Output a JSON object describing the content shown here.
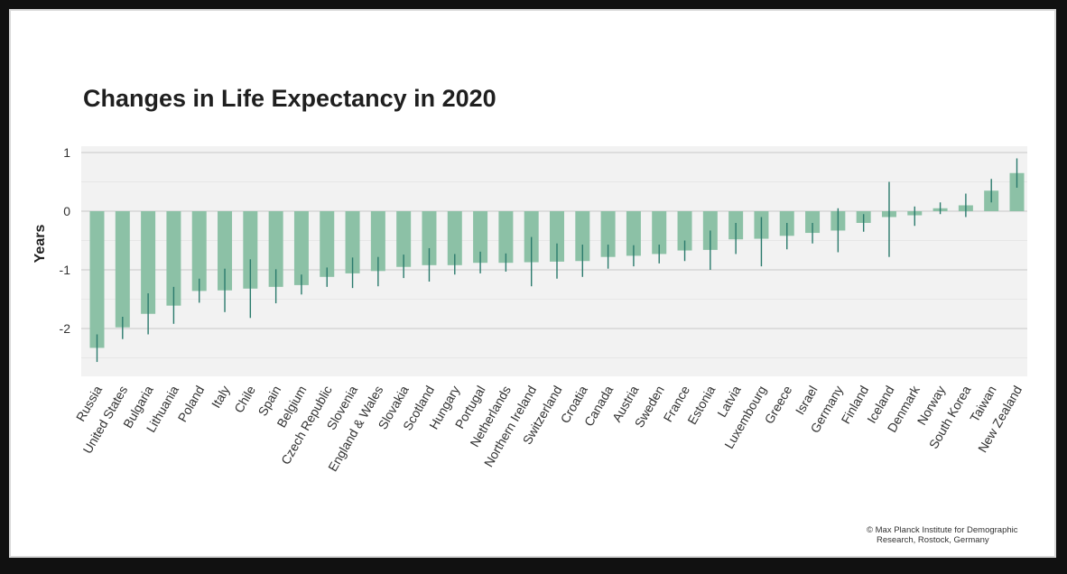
{
  "chart_data": {
    "type": "bar",
    "title": "Changes in Life Expectancy in 2020",
    "xlabel": "",
    "ylabel": "Years",
    "ylim": [
      -2.7,
      1.0
    ],
    "yticks": [
      1,
      0,
      -1,
      -2
    ],
    "ytick_labels": [
      "1",
      "0",
      "-1",
      "-2"
    ],
    "grid": true,
    "bar_color": "#8cc1a6",
    "errorbar_color": "#2a7a6c",
    "categories": [
      "Russia",
      "United States",
      "Bulgaria",
      "Lithuania",
      "Poland",
      "Italy",
      "Chile",
      "Spain",
      "Belgium",
      "Czech Republic",
      "Slovenia",
      "England & Wales",
      "Slovakia",
      "Scotland",
      "Hungary",
      "Portugal",
      "Netherlands",
      "Northern Ireland",
      "Switzerland",
      "Croatia",
      "Canada",
      "Austria",
      "Sweden",
      "France",
      "Estonia",
      "Latvia",
      "Luxembourg",
      "Greece",
      "Israel",
      "Germany",
      "Finland",
      "Iceland",
      "Denmark",
      "Norway",
      "South Korea",
      "Taiwan",
      "New Zealand"
    ],
    "values": [
      -2.33,
      -1.98,
      -1.75,
      -1.61,
      -1.36,
      -1.35,
      -1.32,
      -1.29,
      -1.26,
      -1.12,
      -1.06,
      -1.02,
      -0.95,
      -0.92,
      -0.92,
      -0.88,
      -0.88,
      -0.87,
      -0.86,
      -0.85,
      -0.78,
      -0.76,
      -0.73,
      -0.67,
      -0.66,
      -0.48,
      -0.47,
      -0.42,
      -0.37,
      -0.33,
      -0.2,
      -0.1,
      -0.07,
      0.05,
      0.1,
      0.35,
      0.65
    ],
    "error_low": [
      -2.57,
      -2.18,
      -2.1,
      -1.92,
      -1.56,
      -1.72,
      -1.82,
      -1.57,
      -1.42,
      -1.29,
      -1.31,
      -1.28,
      -1.14,
      -1.2,
      -1.08,
      -1.06,
      -1.03,
      -1.28,
      -1.15,
      -1.12,
      -0.98,
      -0.94,
      -0.89,
      -0.85,
      -1.0,
      -0.73,
      -0.94,
      -0.65,
      -0.55,
      -0.7,
      -0.35,
      -0.78,
      -0.25,
      -0.05,
      -0.1,
      0.15,
      0.4
    ],
    "error_high": [
      -2.1,
      -1.8,
      -1.4,
      -1.29,
      -1.15,
      -0.98,
      -0.82,
      -0.99,
      -1.08,
      -0.96,
      -0.79,
      -0.78,
      -0.74,
      -0.63,
      -0.73,
      -0.69,
      -0.72,
      -0.44,
      -0.55,
      -0.57,
      -0.57,
      -0.58,
      -0.57,
      -0.5,
      -0.33,
      -0.2,
      -0.1,
      -0.2,
      -0.2,
      0.05,
      -0.05,
      0.5,
      0.08,
      0.15,
      0.3,
      0.55,
      0.9
    ]
  },
  "credit": {
    "line1": "© Max Planck Institute for Demographic",
    "line2": "Research, Rostock, Germany"
  }
}
